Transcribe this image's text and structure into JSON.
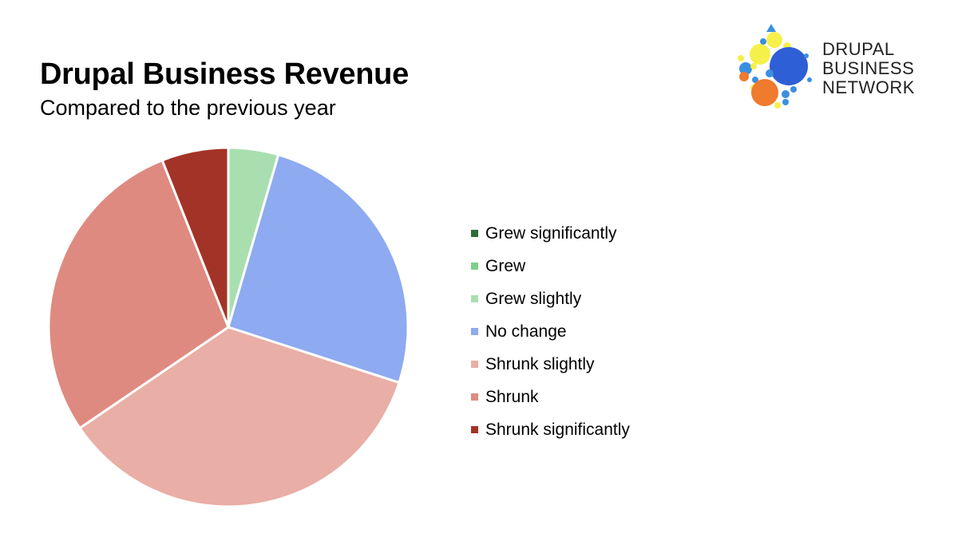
{
  "header": {
    "title": "Drupal Business Revenue",
    "subtitle": "Compared to the previous year"
  },
  "logo": {
    "line1": "DRUPAL",
    "line2": "BUSINESS",
    "line3": "NETWORK"
  },
  "chart_data": {
    "type": "pie",
    "title": "Drupal Business Revenue",
    "subtitle": "Compared to the previous year",
    "legend_position": "right",
    "start_angle": "12 o'clock, clockwise",
    "categories": [
      "Grew significantly",
      "Grew",
      "Grew slightly",
      "No change",
      "Shrunk slightly",
      "Shrunk",
      "Shrunk significantly"
    ],
    "values": [
      0,
      0,
      4.5,
      25.5,
      35.5,
      28.5,
      6
    ],
    "colors": [
      "#2e6b3a",
      "#7fcf8a",
      "#a9dfb0",
      "#8eaaf0",
      "#e9aea6",
      "#df8a80",
      "#a33327"
    ]
  }
}
